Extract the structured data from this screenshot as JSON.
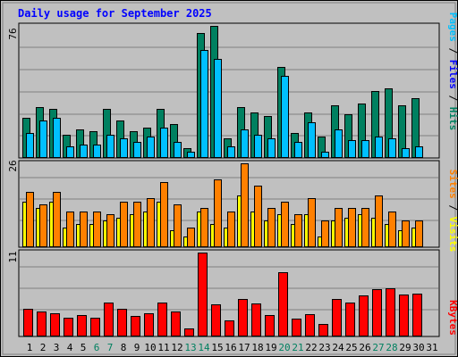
{
  "title": "Daily usage for September 2025",
  "colors": {
    "hits": "#008060",
    "files": "#00c0ff",
    "visits": "#ffff00",
    "sites": "#ff8000",
    "kbytes": "#ff0000",
    "plot_bg": "#c0c0c0",
    "title": "#0000ff",
    "weekend_label": "#008060",
    "day_label": "#000000"
  },
  "chart_data": [
    {
      "type": "bar",
      "panel": "hits-files-pages",
      "ymax_label": "76",
      "side_label_parts": [
        {
          "text": "Pages",
          "color": "#00c0ff"
        },
        {
          "text": " / ",
          "color": "#000000"
        },
        {
          "text": "Files",
          "color": "#0000ff"
        },
        {
          "text": " / ",
          "color": "#000000"
        },
        {
          "text": "Hits",
          "color": "#008060"
        }
      ],
      "ylim": [
        0,
        76
      ],
      "series": [
        {
          "key": "hits",
          "values": [
            23,
            29,
            28,
            13,
            16,
            15,
            28,
            21,
            15,
            17,
            28,
            19,
            5,
            72,
            76,
            11,
            29,
            26,
            24,
            52,
            14,
            26,
            12,
            30,
            25,
            31,
            38,
            40,
            30,
            34
          ]
        },
        {
          "key": "files",
          "values": [
            14,
            21,
            23,
            6,
            7,
            7,
            13,
            11,
            9,
            12,
            17,
            9,
            3,
            62,
            57,
            6,
            16,
            13,
            11,
            47,
            9,
            20,
            3,
            16,
            10,
            10,
            12,
            11,
            5,
            6
          ]
        }
      ]
    },
    {
      "type": "bar",
      "panel": "visits-sites",
      "ymax_label": "26",
      "side_label_parts": [
        {
          "text": "Sites",
          "color": "#ff8000"
        },
        {
          "text": " / ",
          "color": "#000000"
        },
        {
          "text": "Visits",
          "color": "#ffff00"
        }
      ],
      "ylim": [
        0,
        26
      ],
      "series": [
        {
          "key": "visits",
          "values": [
            14,
            12,
            14,
            6,
            7,
            7,
            8,
            9,
            10,
            11,
            14,
            5,
            3,
            11,
            7,
            6,
            16,
            11,
            8,
            10,
            7,
            10,
            3,
            8,
            9,
            10,
            9,
            7,
            5,
            6
          ]
        },
        {
          "key": "sites",
          "values": [
            17,
            13,
            17,
            11,
            11,
            11,
            10,
            14,
            14,
            15,
            20,
            13,
            6,
            12,
            21,
            11,
            26,
            19,
            12,
            14,
            10,
            15,
            8,
            12,
            12,
            12,
            16,
            11,
            8,
            8
          ]
        }
      ]
    },
    {
      "type": "bar",
      "panel": "kbytes",
      "ymax_label": "11",
      "side_label_parts": [
        {
          "text": "KBytes",
          "color": "#ff0000"
        }
      ],
      "ylim": [
        0,
        11
      ],
      "series": [
        {
          "key": "kbytes",
          "values": [
            3.6,
            3.2,
            3.0,
            2.4,
            2.7,
            2.4,
            4.4,
            3.6,
            2.6,
            2.9,
            4.4,
            3.2,
            1.0,
            11.0,
            4.1,
            2.0,
            4.8,
            4.3,
            2.7,
            8.4,
            2.3,
            2.8,
            1.5,
            4.9,
            4.4,
            5.3,
            6.1,
            6.3,
            5.4,
            5.6
          ]
        }
      ]
    }
  ],
  "days": [
    "1",
    "2",
    "3",
    "4",
    "5",
    "6",
    "7",
    "8",
    "9",
    "10",
    "11",
    "12",
    "13",
    "14",
    "15",
    "16",
    "17",
    "18",
    "19",
    "20",
    "21",
    "22",
    "23",
    "24",
    "25",
    "26",
    "27",
    "28",
    "29",
    "30",
    "31"
  ],
  "weekend_days": [
    6,
    7,
    13,
    14,
    20,
    21,
    27,
    28
  ]
}
